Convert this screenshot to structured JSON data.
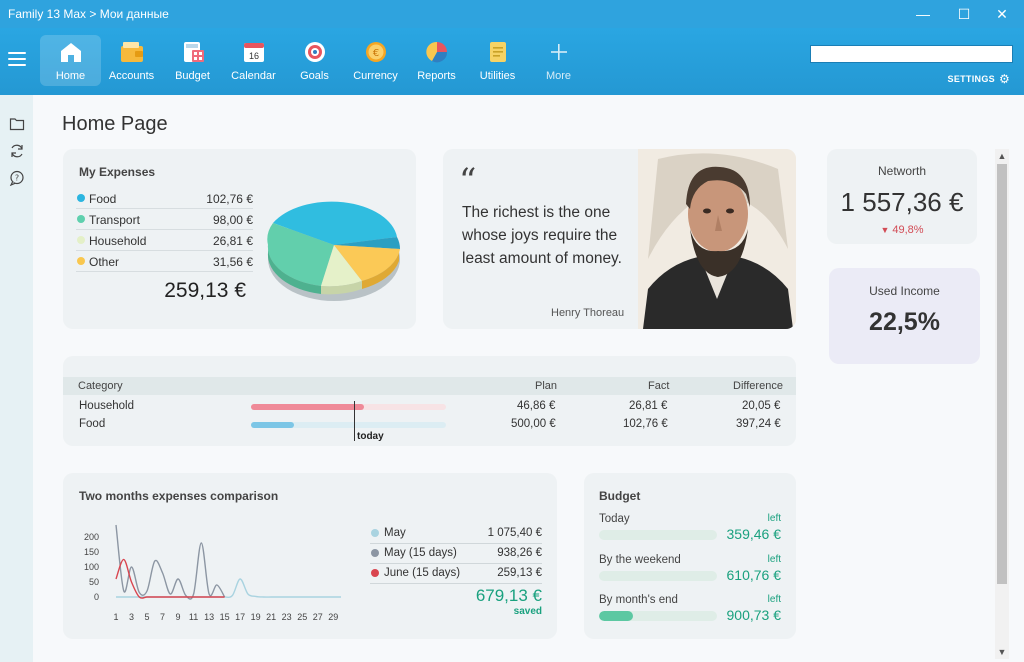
{
  "window": {
    "title": "Family 13 Max > Мои данные"
  },
  "nav": [
    {
      "label": "Home",
      "icon": "home-icon"
    },
    {
      "label": "Accounts",
      "icon": "wallet-icon"
    },
    {
      "label": "Budget",
      "icon": "calculator-icon"
    },
    {
      "label": "Calendar",
      "icon": "calendar-icon"
    },
    {
      "label": "Goals",
      "icon": "target-icon"
    },
    {
      "label": "Currency",
      "icon": "coin-icon"
    },
    {
      "label": "Reports",
      "icon": "pie-chart-icon"
    },
    {
      "label": "Utilities",
      "icon": "document-icon"
    },
    {
      "label": "More",
      "icon": "plus-icon"
    }
  ],
  "calendar_day": "16",
  "settings_label": "SETTINGS",
  "page_title": "Home Page",
  "expenses": {
    "title": "My Expenses",
    "items": [
      {
        "label": "Food",
        "value": "102,76 €",
        "color": "#2bb5e0"
      },
      {
        "label": "Transport",
        "value": "98,00 €",
        "color": "#5fd0ae"
      },
      {
        "label": "Household",
        "value": "26,81 €",
        "color": "#e4f0c8"
      },
      {
        "label": "Other",
        "value": "31,56 €",
        "color": "#f9c74f"
      }
    ],
    "total": "259,13 €"
  },
  "quote": {
    "text": "The richest is the one whose joys require the least amount of money.",
    "author": "Henry Thoreau"
  },
  "networth": {
    "title": "Networth",
    "value": "1 557,36 €",
    "change": "49,8%"
  },
  "used_income": {
    "title": "Used Income",
    "value": "22,5%"
  },
  "plan": {
    "headers": {
      "category": "Category",
      "plan": "Plan",
      "fact": "Fact",
      "difference": "Difference"
    },
    "rows": [
      {
        "category": "Household",
        "plan": "46,86 €",
        "fact": "26,81 €",
        "difference": "20,05 €",
        "progress": 0.58,
        "color": "#ef8a98",
        "track": "#f7e3e5"
      },
      {
        "category": "Food",
        "plan": "500,00 €",
        "fact": "102,76 €",
        "difference": "397,24 €",
        "progress": 0.22,
        "color": "#7cc6e6",
        "track": "#dcedf3"
      }
    ],
    "today_label": "today"
  },
  "comparison": {
    "title": "Two months expenses comparison",
    "legend": [
      {
        "label": "May",
        "value": "1 075,40 €",
        "color": "#a9d3e0"
      },
      {
        "label": "May (15 days)",
        "value": "938,26 €",
        "color": "#8c96a3"
      },
      {
        "label": "June (15 days)",
        "value": "259,13 €",
        "color": "#d9454f"
      }
    ],
    "saved_value": "679,13 €",
    "saved_label": "saved"
  },
  "chart_data": {
    "type": "line",
    "x_ticks": [
      "1",
      "3",
      "5",
      "7",
      "9",
      "11",
      "13",
      "15",
      "17",
      "19",
      "21",
      "23",
      "25",
      "27",
      "29"
    ],
    "y_ticks": [
      "0",
      "50",
      "100",
      "150",
      "200"
    ],
    "ylim": [
      0,
      240
    ],
    "series": [
      {
        "name": "May",
        "color": "#a9d3e0",
        "x": [
          1,
          2,
          3,
          4,
          5,
          6,
          7,
          8,
          9,
          10,
          11,
          12,
          13,
          14,
          15,
          16,
          17,
          18,
          19,
          20,
          21,
          22,
          23,
          24,
          25,
          26,
          27,
          28,
          29,
          30
        ],
        "values": [
          0,
          0,
          0,
          0,
          0,
          0,
          0,
          0,
          0,
          0,
          0,
          0,
          0,
          0,
          0,
          5,
          60,
          10,
          2,
          0,
          0,
          0,
          0,
          0,
          0,
          0,
          0,
          0,
          0,
          0
        ]
      },
      {
        "name": "May (15 days)",
        "color": "#8c96a3",
        "x": [
          1,
          2,
          3,
          4,
          5,
          6,
          7,
          8,
          9,
          10,
          11,
          12,
          13,
          14,
          15
        ],
        "values": [
          240,
          20,
          100,
          15,
          20,
          120,
          80,
          10,
          60,
          5,
          10,
          180,
          10,
          40,
          0
        ]
      },
      {
        "name": "June (15 days)",
        "color": "#d9454f",
        "x": [
          1,
          2,
          3,
          4,
          5,
          6,
          7,
          8,
          9,
          10,
          11,
          12,
          13,
          14,
          15
        ],
        "values": [
          60,
          125,
          50,
          0,
          0,
          0,
          0,
          0,
          0,
          0,
          0,
          0,
          0,
          0,
          0
        ]
      }
    ]
  },
  "budget": {
    "title": "Budget",
    "items": [
      {
        "label": "Today",
        "left_label": "left",
        "amount": "359,46 €",
        "progress": 0.0
      },
      {
        "label": "By the weekend",
        "left_label": "left",
        "amount": "610,76 €",
        "progress": 0.0
      },
      {
        "label": "By month's end",
        "left_label": "left",
        "amount": "900,73 €",
        "progress": 0.29
      }
    ]
  }
}
